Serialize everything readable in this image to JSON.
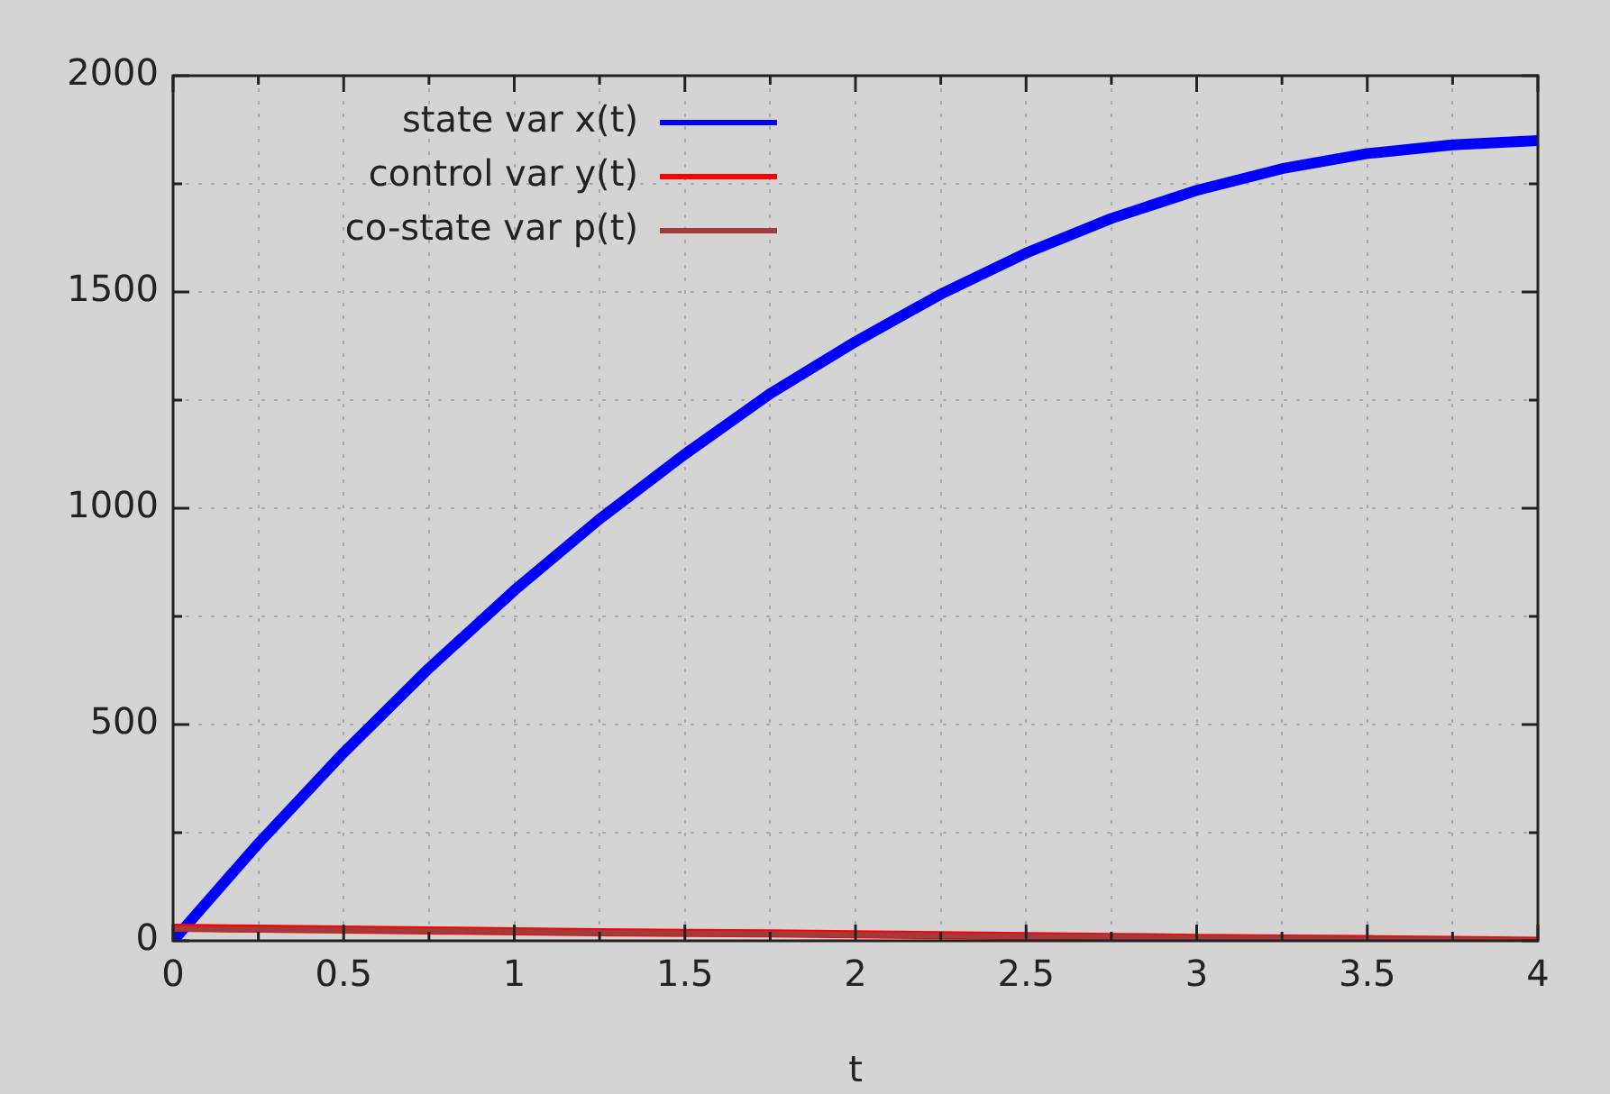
{
  "chart_data": {
    "type": "line",
    "xlabel": "t",
    "xlim": [
      0,
      4
    ],
    "ylim": [
      0,
      2000
    ],
    "xticks": [
      0,
      {
        "value": 0.25,
        "label": null
      },
      0.5,
      {
        "value": 0.75,
        "label": null
      },
      1,
      {
        "value": 1.25,
        "label": null
      },
      1.5,
      {
        "value": 1.75,
        "label": null
      },
      2,
      {
        "value": 2.25,
        "label": null
      },
      2.5,
      {
        "value": 2.75,
        "label": null
      },
      3,
      {
        "value": 3.25,
        "label": null
      },
      3.5,
      {
        "value": 3.75,
        "label": null
      },
      4
    ],
    "yticks": [
      0,
      {
        "value": 250,
        "label": null
      },
      500,
      {
        "value": 750,
        "label": null
      },
      1000,
      {
        "value": 1250,
        "label": null
      },
      1500,
      {
        "value": 1750,
        "label": null
      },
      2000
    ],
    "grid": true,
    "legend": "top left",
    "marker": "none",
    "line_style": "solid",
    "x": [
      0,
      0.25,
      0.5,
      0.75,
      1,
      1.25,
      1.5,
      1.75,
      2,
      2.25,
      2.5,
      2.75,
      3,
      3.25,
      3.5,
      3.75,
      4
    ],
    "series": [
      {
        "name": "state var x(t)",
        "color": "#0000ff",
        "values": [
          0,
          225,
          435,
          630,
          810,
          975,
          1125,
          1265,
          1385,
          1495,
          1590,
          1670,
          1735,
          1785,
          1820,
          1840,
          1850
        ]
      },
      {
        "name": "control var y(t)",
        "color": "#ff0000",
        "values": [
          30,
          28,
          26,
          24,
          22,
          20,
          18,
          17,
          15,
          13,
          11,
          9,
          7,
          5,
          4,
          2,
          0
        ]
      },
      {
        "name": "co-state var p(t)",
        "color": "#a03c3c",
        "values": [
          28,
          26,
          25,
          23,
          21,
          19,
          17,
          16,
          14,
          12,
          10,
          9,
          7,
          5,
          3,
          2,
          0
        ]
      }
    ]
  }
}
